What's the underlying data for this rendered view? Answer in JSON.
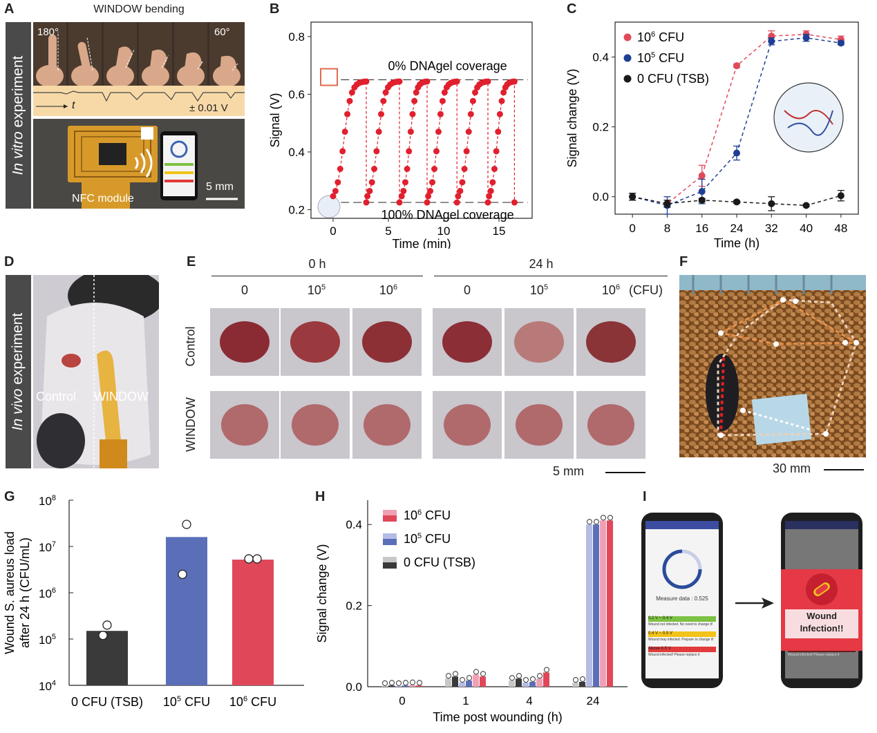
{
  "panel_labels": {
    "A": "A",
    "B": "B",
    "C": "C",
    "D": "D",
    "E": "E",
    "F": "F",
    "G": "G",
    "H": "H",
    "I": "I"
  },
  "panelA": {
    "side_label_em": "In vitro",
    "side_label_rest": " experiment",
    "title": "WINDOW bending",
    "angle_start": "180°",
    "angle_end": "60°",
    "time_label": "t",
    "voltage_label": "± 0.01 V",
    "module_label": "NFC module",
    "scale_label": "5 mm",
    "phone_value": "Measure data : 0.605"
  },
  "panelD": {
    "side_label_em": "In vivo",
    "side_label_rest": " experiment",
    "left_label": "Control",
    "right_label": "WINDOW"
  },
  "panelE": {
    "groups": [
      "0 h",
      "24 h"
    ],
    "columns": [
      "0",
      "10",
      "10",
      "0",
      "10",
      "10"
    ],
    "column_exponents": [
      "",
      "5",
      "6",
      "",
      "5",
      "6"
    ],
    "unit": "(CFU)",
    "rows": [
      "Control",
      "WINDOW"
    ],
    "scale_label": "5 mm"
  },
  "panelF": {
    "scale_label": "30 mm"
  },
  "panelI": {
    "measure_text": "Measure data : 0.525",
    "status_rows": [
      {
        "range": "0.2 V ~ 0.4 V",
        "message": "Wound not infected. No need to change it!",
        "color": "#7dc242"
      },
      {
        "range": "0.4 V ~ 0.5 V",
        "message": "Wound may infected. Prepare to change it!",
        "color": "#f2c318"
      },
      {
        "range": "Above 0.5 V",
        "message": "Wound infected! Please replace it",
        "color": "#e23b3b"
      }
    ],
    "alert_line1": "Wound",
    "alert_line2": "Infection!!",
    "colors": {
      "bar_blue": "#2b4c9b",
      "alert_red": "#e53945"
    }
  },
  "chart_data": [
    {
      "id": "B",
      "type": "scatter",
      "xlabel": "Time (min)",
      "ylabel": "Signal (V)",
      "xlim": [
        -2,
        18
      ],
      "ylim": [
        0.17,
        0.85
      ],
      "xticks": [
        0,
        5,
        10,
        15
      ],
      "yticks": [
        0.2,
        0.4,
        0.6,
        0.8
      ],
      "ref_lines": [
        {
          "y": 0.65,
          "label": "0% DNAgel coverage"
        },
        {
          "y": 0.225,
          "label": "100% DNAgel coverage"
        }
      ],
      "cycles": [
        {
          "start": 0.0,
          "end": 3.0
        },
        {
          "start": 3.1,
          "end": 6.0
        },
        {
          "start": 6.2,
          "end": 8.5
        },
        {
          "start": 8.6,
          "end": 11.2
        },
        {
          "start": 11.3,
          "end": 14.0
        },
        {
          "start": 14.1,
          "end": 16.4
        }
      ],
      "low": 0.225,
      "high": 0.645,
      "color": "#e0202e"
    },
    {
      "id": "C",
      "type": "line",
      "xlabel": "Time (h)",
      "ylabel": "Signal change (V)",
      "xlim": [
        -4,
        52
      ],
      "ylim": [
        -0.05,
        0.5
      ],
      "xticks": [
        0,
        8,
        16,
        24,
        32,
        40,
        48
      ],
      "yticks": [
        0.0,
        0.2,
        0.4
      ],
      "x": [
        0,
        8,
        16,
        24,
        32,
        40,
        48
      ],
      "series": [
        {
          "name": "10",
          "exp": "6",
          "suffix": " CFU",
          "color": "#e04a5a",
          "values": [
            0.0,
            -0.02,
            0.06,
            0.375,
            0.46,
            0.465,
            0.45
          ],
          "errors": [
            0.01,
            0.01,
            0.03,
            0.005,
            0.015,
            0.01,
            0.01
          ]
        },
        {
          "name": "10",
          "exp": "5",
          "suffix": " CFU",
          "color": "#1e3f93",
          "values": [
            0.0,
            -0.025,
            0.015,
            0.125,
            0.445,
            0.455,
            0.44
          ],
          "errors": [
            0.01,
            0.025,
            0.035,
            0.02,
            0.01,
            0.01,
            0.005
          ]
        },
        {
          "name": "0 CFU (TSB)",
          "exp": "",
          "suffix": "",
          "color": "#1a1a1a",
          "values": [
            0.0,
            -0.02,
            -0.01,
            -0.015,
            -0.02,
            -0.025,
            0.003
          ],
          "errors": [
            0.01,
            0.01,
            0.005,
            0.004,
            0.02,
            0.003,
            0.015
          ]
        }
      ]
    },
    {
      "id": "G",
      "type": "bar",
      "ylabel_line1": "Wound S. aureus load",
      "ylabel_line2": "after 24 h (CFU/mL)",
      "yscale": "log",
      "ylim_exp": [
        4,
        8
      ],
      "ytick_base": "10",
      "ytick_exps": [
        "4",
        "5",
        "6",
        "7",
        "8"
      ],
      "categories": [
        "0 CFU (TSB)",
        "10",
        "10"
      ],
      "category_exps": [
        "",
        "5",
        "6"
      ],
      "category_suffix": [
        "",
        " CFU",
        " CFU"
      ],
      "values": [
        150000,
        16000000,
        5200000
      ],
      "points": [
        [
          200000,
          120000
        ],
        [
          30000000,
          2500000
        ],
        [
          5400000,
          5400000
        ]
      ],
      "colors": [
        "#3a3a3a",
        "#5b6fb8",
        "#e0485a"
      ]
    },
    {
      "id": "H",
      "type": "bar",
      "xlabel": "Time post wounding (h)",
      "ylabel": "Signal change (V)",
      "ylim": [
        0.0,
        0.46
      ],
      "yticks": [
        0.0,
        0.2,
        0.4
      ],
      "categories": [
        "0",
        "1",
        "4",
        "24"
      ],
      "legend": [
        {
          "name": "10",
          "exp": "6",
          "suffix": " CFU",
          "light": "#f0a0b4",
          "dark": "#e0485a"
        },
        {
          "name": "10",
          "exp": "5",
          "suffix": " CFU",
          "light": "#b4bce4",
          "dark": "#5b6fb8"
        },
        {
          "name": "0 CFU (TSB)",
          "exp": "",
          "suffix": "",
          "light": "#c8c8c8",
          "dark": "#3a3a3a"
        }
      ],
      "series": [
        {
          "name": "TSB A",
          "color": "#c8c8c8",
          "values": [
            0.002,
            0.02,
            0.015,
            0.01
          ]
        },
        {
          "name": "TSB B",
          "color": "#3a3a3a",
          "values": [
            0.003,
            0.025,
            0.02,
            0.012
          ]
        },
        {
          "name": "10^5 A",
          "color": "#b4bce4",
          "values": [
            0.002,
            0.01,
            0.01,
            0.4
          ]
        },
        {
          "name": "10^5 B",
          "color": "#5b6fb8",
          "values": [
            0.003,
            0.015,
            0.012,
            0.4
          ]
        },
        {
          "name": "10^6 A",
          "color": "#f0a0b4",
          "values": [
            0.004,
            0.03,
            0.02,
            0.41
          ]
        },
        {
          "name": "10^6 B",
          "color": "#e0485a",
          "values": [
            0.003,
            0.025,
            0.035,
            0.41
          ]
        }
      ]
    }
  ]
}
